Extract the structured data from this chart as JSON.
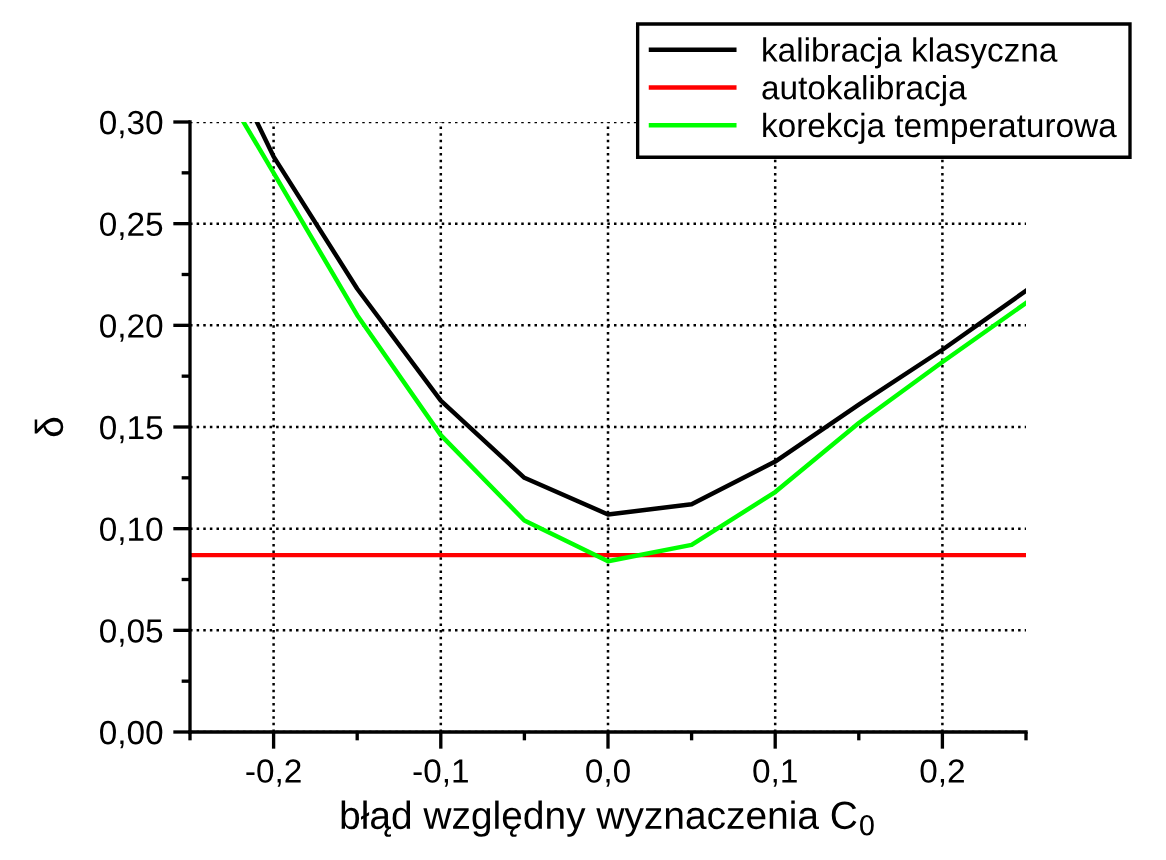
{
  "chart_data": {
    "type": "line",
    "xlabel": "błąd względny wyznaczenia C$_{0}$",
    "ylabel": "δ",
    "xlim": [
      -0.25,
      0.25
    ],
    "xticks": [
      {
        "value": -0.2,
        "label": "-0,2"
      },
      {
        "value": -0.1,
        "label": "-0,1"
      },
      {
        "value": 0,
        "label": "0,0"
      },
      {
        "value": 0.1,
        "label": "0,1"
      },
      {
        "value": 0.2,
        "label": "0,2"
      }
    ],
    "ylim": [
      0,
      0.3
    ],
    "yticks": [
      {
        "value": 0,
        "label": "0,00"
      },
      {
        "value": 0.05,
        "label": "0,05"
      },
      {
        "value": 0.1,
        "label": "0,10"
      },
      {
        "value": 0.15,
        "label": "0,15"
      },
      {
        "value": 0.2,
        "label": "0,20"
      },
      {
        "value": 0.25,
        "label": "0,25"
      },
      {
        "value": 0.3,
        "label": "0,30"
      }
    ],
    "grid": true,
    "legend": "top right",
    "marker": "none",
    "line_style": "solid",
    "series": [
      {
        "name": "kalibracja klasyczna",
        "color": "#000000",
        "x": [
          -0.21,
          -0.2,
          -0.15,
          -0.1,
          -0.05,
          0,
          0.05,
          0.1,
          0.15,
          0.2,
          0.25
        ],
        "values": [
          0.3,
          0.283,
          0.218,
          0.163,
          0.125,
          0.107,
          0.112,
          0.133,
          0.161,
          0.188,
          0.217
        ]
      },
      {
        "name": "autokalibracja",
        "color": "#ff0000",
        "x": [
          -0.25,
          -0.15,
          -0.05,
          0.05,
          0.15,
          0.25
        ],
        "values": [
          0.087,
          0.087,
          0.087,
          0.087,
          0.087,
          0.087
        ]
      },
      {
        "name": "korekcja temperaturowa",
        "color": "#00ff00",
        "x": [
          -0.218,
          -0.2,
          -0.15,
          -0.1,
          -0.05,
          0,
          0.05,
          0.1,
          0.15,
          0.2,
          0.25
        ],
        "values": [
          0.3,
          0.275,
          0.205,
          0.146,
          0.104,
          0.084,
          0.092,
          0.118,
          0.152,
          0.182,
          0.211
        ]
      }
    ]
  }
}
